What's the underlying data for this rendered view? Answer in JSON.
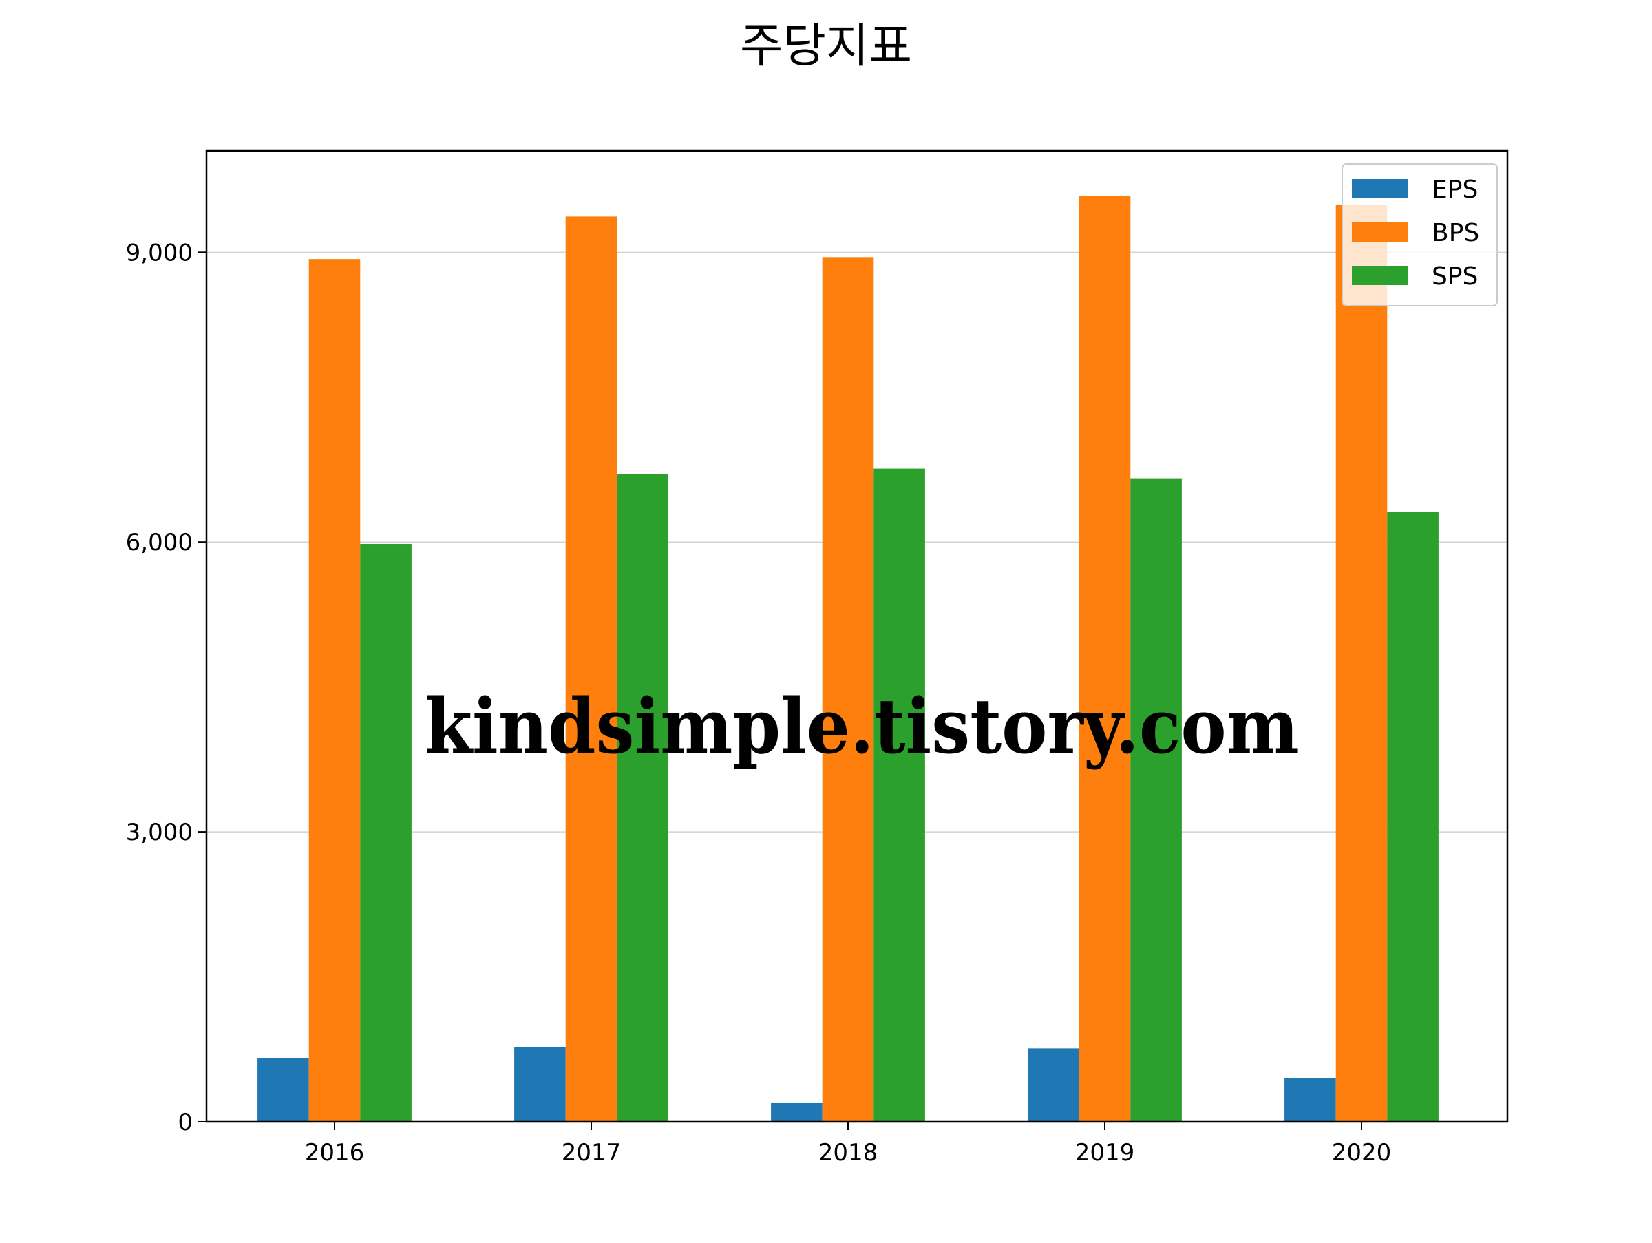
{
  "chart_data": {
    "type": "bar",
    "title": "주당지표",
    "xlabel": "",
    "ylabel": "",
    "categories": [
      "2016",
      "2017",
      "2018",
      "2019",
      "2020"
    ],
    "series": [
      {
        "name": "EPS",
        "color": "#1f77b4",
        "values": [
          660,
          770,
          200,
          760,
          450
        ]
      },
      {
        "name": "BPS",
        "color": "#ff7f0e",
        "values": [
          8930,
          9370,
          8950,
          9580,
          9490
        ]
      },
      {
        "name": "SPS",
        "color": "#2ca02c",
        "values": [
          5980,
          6700,
          6760,
          6660,
          6310
        ]
      }
    ],
    "ylim": [
      0,
      10050
    ],
    "yticks": [
      0,
      3000,
      6000,
      9000
    ],
    "ytick_labels": [
      "0",
      "3,000",
      "6,000",
      "9,000"
    ],
    "grid": "horizontal",
    "legend_position": "top-right"
  },
  "watermark": {
    "text": "kindsimple.tistory.com",
    "color": "#e4a4ea"
  }
}
